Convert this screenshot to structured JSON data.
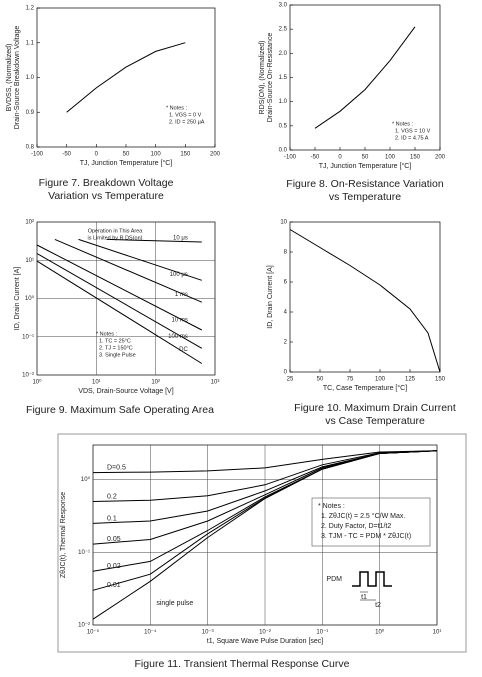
{
  "chart_data": [
    {
      "type": "line",
      "caption": [
        "Figure 7. Breakdown Voltage",
        "Variation vs Temperature"
      ],
      "xlabel": "TJ, Junction Temperature [°C]",
      "ylabel": [
        "BVDSS, (Normalized)",
        "Drain-Source Breakdown Voltage"
      ],
      "notes": [
        "* Notes :",
        "1. VGS = 0 V",
        "2. ID = 250 μA"
      ],
      "xlim": [
        -100,
        200
      ],
      "xticks": [
        -100,
        -50,
        0,
        50,
        100,
        150,
        200
      ],
      "ylim": [
        0.8,
        1.2
      ],
      "yticks": [
        0.8,
        0.9,
        {
          "value": 1,
          "label": "1.0"
        },
        1.1,
        1.2
      ],
      "series": [
        {
          "color": "#000000",
          "x": [
            -50,
            0,
            50,
            100,
            150
          ],
          "values": [
            0.9,
            0.97,
            1.03,
            1.075,
            1.1
          ]
        }
      ]
    },
    {
      "type": "line",
      "caption": [
        "Figure 8. On-Resistance Variation",
        "vs Temperature"
      ],
      "xlabel": "TJ, Junction Temperature [°C]",
      "ylabel": [
        "RDS(ON), (Normalized)",
        "Drain-Source On-Resistance"
      ],
      "notes": [
        "* Notes :",
        "1. VGS = 10 V",
        "2. ID = 4.75 A"
      ],
      "xlim": [
        -100,
        200
      ],
      "xticks": [
        -100,
        -50,
        0,
        50,
        100,
        150,
        200
      ],
      "ylim": [
        0,
        3
      ],
      "yticks": [
        {
          "value": 0,
          "label": "0.0"
        },
        0.5,
        {
          "value": 1,
          "label": "1.0"
        },
        1.5,
        {
          "value": 2,
          "label": "2.0"
        },
        2.5,
        {
          "value": 3,
          "label": "3.0"
        }
      ],
      "series": [
        {
          "color": "#000000",
          "x": [
            -50,
            0,
            50,
            100,
            150
          ],
          "values": [
            0.45,
            0.8,
            1.25,
            1.85,
            2.55
          ]
        }
      ]
    },
    {
      "type": "line",
      "caption": [
        "Figure 9. Maximum Safe Operating Area"
      ],
      "xlabel": "VDS, Drain-Source Voltage [V]",
      "ylabel": [
        "ID, Drain Current [A]"
      ],
      "notes": [
        "* Notes :",
        "1. TC = 25°C",
        "2. TJ = 150°C",
        "3. Single Pulse"
      ],
      "annotations": [
        "Operation in This Area",
        "is Limited by R DS(on)"
      ],
      "log": true,
      "grid": true,
      "xlim": [
        1,
        1000
      ],
      "xticks": [
        {
          "value": 1,
          "label": "10⁰"
        },
        {
          "value": 10,
          "label": "10¹"
        },
        {
          "value": 100,
          "label": "10²"
        },
        {
          "value": 1000,
          "label": "10³"
        }
      ],
      "ylim": [
        0.01,
        100
      ],
      "yticks": [
        {
          "value": 0.01,
          "label": "10⁻²"
        },
        {
          "value": 0.1,
          "label": "10⁻¹"
        },
        {
          "value": 1,
          "label": "10⁰"
        },
        {
          "value": 10,
          "label": "10¹"
        },
        {
          "value": 100,
          "label": "10²"
        }
      ],
      "series": [
        {
          "name": "10 μs",
          "color": "#000000",
          "x": [
            15,
            600
          ],
          "values": [
            35,
            30
          ]
        },
        {
          "name": "100 μs",
          "color": "#000000",
          "x": [
            5,
            600
          ],
          "values": [
            35,
            3
          ]
        },
        {
          "name": "1 ms",
          "color": "#000000",
          "x": [
            2,
            600
          ],
          "values": [
            35,
            0.8
          ]
        },
        {
          "name": "10 ms",
          "color": "#000000",
          "x": [
            1,
            600
          ],
          "values": [
            25,
            0.15
          ]
        },
        {
          "name": "100 ms",
          "color": "#000000",
          "x": [
            1,
            600
          ],
          "values": [
            15,
            0.05
          ]
        },
        {
          "name": "DC",
          "color": "#000000",
          "x": [
            1,
            600
          ],
          "values": [
            9.5,
            0.02
          ]
        }
      ]
    },
    {
      "type": "line",
      "caption": [
        "Figure 10. Maximum Drain Current",
        "vs Case Temperature"
      ],
      "xlabel": "TC, Case Temperature [°C]",
      "ylabel": [
        "ID, Drain Current [A]"
      ],
      "xlim": [
        25,
        150
      ],
      "xticks": [
        25,
        50,
        75,
        100,
        125,
        150
      ],
      "ylim": [
        0,
        10
      ],
      "yticks": [
        0,
        2,
        4,
        6,
        8,
        10
      ],
      "series": [
        {
          "color": "#000000",
          "x": [
            25,
            50,
            75,
            100,
            125,
            140,
            150
          ],
          "values": [
            9.5,
            8.3,
            7.1,
            5.8,
            4.2,
            2.6,
            0
          ]
        }
      ]
    },
    {
      "type": "line",
      "caption": [
        "Figure 11. Transient Thermal Response Curve"
      ],
      "xlabel": "t1, Square Wave Pulse Duration [sec]",
      "ylabel": [
        "ZθJC(t), Thermal Response"
      ],
      "notes": [
        "* Notes :",
        "1. ZθJC(t) = 2.5 °C/W Max.",
        "2. Duty Factor, D=t1/t2",
        "3. TJM - TC = PDM * ZθJC(t)"
      ],
      "annotations": [
        "PDM",
        "t1",
        "t2"
      ],
      "log": true,
      "grid": true,
      "xlim": [
        1e-05,
        10
      ],
      "xticks": [
        {
          "value": 1e-05,
          "label": "10⁻⁵"
        },
        {
          "value": 0.0001,
          "label": "10⁻⁴"
        },
        {
          "value": 0.001,
          "label": "10⁻³"
        },
        {
          "value": 0.01,
          "label": "10⁻²"
        },
        {
          "value": 0.1,
          "label": "10⁻¹"
        },
        {
          "value": 1,
          "label": "10⁰"
        },
        {
          "value": 10,
          "label": "10¹"
        }
      ],
      "ylim": [
        0.01,
        3
      ],
      "yticks": [
        {
          "value": 0.01,
          "label": "10⁻²"
        },
        {
          "value": 0.1,
          "label": "10⁻¹"
        },
        {
          "value": 1,
          "label": "10⁰"
        }
      ],
      "series": [
        {
          "name": "D=0.5",
          "color": "#000000",
          "x": [
            1e-05,
            0.0001,
            0.001,
            0.01,
            0.1,
            1,
            10
          ],
          "values": [
            1.25,
            1.27,
            1.32,
            1.45,
            1.9,
            2.4,
            2.5
          ]
        },
        {
          "name": "0.2",
          "color": "#000000",
          "x": [
            1e-05,
            0.0001,
            0.001,
            0.01,
            0.1,
            1,
            10
          ],
          "values": [
            0.5,
            0.52,
            0.6,
            0.85,
            1.6,
            2.35,
            2.5
          ]
        },
        {
          "name": "0.1",
          "color": "#000000",
          "x": [
            1e-05,
            0.0001,
            0.001,
            0.01,
            0.1,
            1,
            10
          ],
          "values": [
            0.25,
            0.27,
            0.37,
            0.7,
            1.5,
            2.3,
            2.5
          ]
        },
        {
          "name": "0.05",
          "color": "#000000",
          "x": [
            1e-05,
            0.0001,
            0.001,
            0.01,
            0.1,
            1,
            10
          ],
          "values": [
            0.13,
            0.15,
            0.27,
            0.62,
            1.45,
            2.3,
            2.5
          ]
        },
        {
          "name": "0.02",
          "color": "#000000",
          "x": [
            1e-05,
            0.0001,
            0.001,
            0.01,
            0.1,
            1,
            10
          ],
          "values": [
            0.055,
            0.075,
            0.2,
            0.58,
            1.4,
            2.3,
            2.5
          ]
        },
        {
          "name": "0.01",
          "color": "#000000",
          "x": [
            1e-05,
            0.0001,
            0.001,
            0.01,
            0.1,
            1,
            10
          ],
          "values": [
            0.03,
            0.05,
            0.18,
            0.56,
            1.4,
            2.3,
            2.5
          ]
        },
        {
          "name": "single pulse",
          "color": "#000000",
          "x": [
            1e-05,
            0.0001,
            0.001,
            0.01,
            0.1,
            1,
            10
          ],
          "values": [
            0.012,
            0.04,
            0.16,
            0.55,
            1.4,
            2.3,
            2.5
          ]
        }
      ]
    }
  ]
}
